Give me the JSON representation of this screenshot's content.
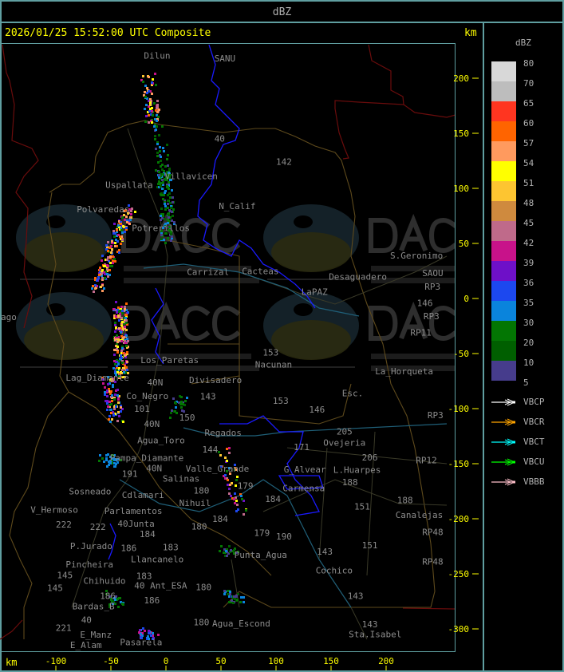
{
  "header": {
    "title": "dBZ"
  },
  "map": {
    "title": "2026/01/25 15:52:00 UTC Composite",
    "unit_top": "km",
    "unit_bottom": "km",
    "x_ticks": [
      -100,
      -50,
      0,
      50,
      100,
      150,
      200
    ],
    "y_ticks": [
      200,
      150,
      100,
      50,
      0,
      -50,
      -100,
      -150,
      -200,
      -250,
      -300
    ],
    "x_range_km": [
      -150,
      263
    ],
    "y_range_km": [
      -320,
      232
    ],
    "axis_color": "#ffff00",
    "label_color": "#8c8c8c",
    "watermark": {
      "logo": "DACC",
      "line1": "Dirección de Agricultura",
      "line2": "y Contingencias Climáticas",
      "url": "http://www.contingencias.mendoza.gov.ar"
    },
    "places": [
      {
        "t": "Dilun",
        "x": -20,
        "y": 227
      },
      {
        "t": "SANU",
        "x": 44,
        "y": 216
      },
      {
        "t": "40",
        "x": 44,
        "y": 143
      },
      {
        "t": "142",
        "x": 100,
        "y": 122
      },
      {
        "t": "Villavicen",
        "x": -1,
        "y": 109
      },
      {
        "t": "Uspallata",
        "x": -55,
        "y": 101
      },
      {
        "t": "Polvaredas",
        "x": -81,
        "y": 79
      },
      {
        "t": "N_Calif",
        "x": 48,
        "y": 82
      },
      {
        "t": "Potrerillos",
        "x": -31,
        "y": 62
      },
      {
        "t": "Carrizal",
        "x": 19,
        "y": 22
      },
      {
        "t": "Cacteas",
        "x": 69,
        "y": 23
      },
      {
        "t": "LaPAZ",
        "x": 123,
        "y": 4
      },
      {
        "t": "Desaguadero",
        "x": 148,
        "y": 9
      },
      {
        "t": "S.Geronimo",
        "x": 211,
        "y": 37
      },
      {
        "t": "SAOU",
        "x": 238,
        "y": 21
      },
      {
        "t": "146",
        "x": 228,
        "y": -6
      },
      {
        "t": "RP3",
        "x": 235,
        "y": 0
      },
      {
        "t": "RP3",
        "x": 234,
        "y": -18
      },
      {
        "t": "RP11",
        "x": 222,
        "y": -33
      },
      {
        "t": "153",
        "x": 88,
        "y": -51
      },
      {
        "t": "Nacunan",
        "x": 81,
        "y": -62
      },
      {
        "t": "La_Horqueta",
        "x": 190,
        "y": -68
      },
      {
        "t": "Esc.",
        "x": 160,
        "y": -88
      },
      {
        "t": "153",
        "x": 97,
        "y": -95
      },
      {
        "t": "146",
        "x": 130,
        "y": -103
      },
      {
        "t": "RP3",
        "x": 242,
        "y": -108
      },
      {
        "t": "Lag_Diamante",
        "x": -91,
        "y": -74
      },
      {
        "t": "Co_Negro",
        "x": -36,
        "y": -82
      },
      {
        "t": "40N",
        "x": -17,
        "y": -87
      },
      {
        "t": "Divisadero",
        "x": 21,
        "y": -76
      },
      {
        "t": "Los_Paretas",
        "x": -23,
        "y": -58
      },
      {
        "t": "143",
        "x": 31,
        "y": -91
      },
      {
        "t": "101",
        "x": -29,
        "y": -102
      },
      {
        "t": "150",
        "x": 12,
        "y": -110
      },
      {
        "t": "40N",
        "x": -20,
        "y": -116
      },
      {
        "t": "Agua_Toro",
        "x": -26,
        "y": -122
      },
      {
        "t": "Regados",
        "x": 17,
        "y": -124
      },
      {
        "t": "Pampa_Diamante",
        "x": -51,
        "y": -138
      },
      {
        "t": "191",
        "x": -40,
        "y": -144
      },
      {
        "t": "144",
        "x": 33,
        "y": -139
      },
      {
        "t": "Valle_Grande",
        "x": 18,
        "y": -148
      },
      {
        "t": "40N",
        "x": -36,
        "y": -156
      },
      {
        "t": "Salinas",
        "x": -3,
        "y": -157
      },
      {
        "t": "180",
        "x": 25,
        "y": -159
      },
      {
        "t": "Cdlamari",
        "x": -40,
        "y": -163
      },
      {
        "t": "Parlamentos",
        "x": -56,
        "y": -169
      },
      {
        "t": "Sosneado",
        "x": -70,
        "y": -177
      },
      {
        "t": "Nihuil",
        "x": 12,
        "y": -179
      },
      {
        "t": "V_Hermoso",
        "x": -123,
        "y": -185
      },
      {
        "t": "222",
        "x": -100,
        "y": -190
      },
      {
        "t": "222",
        "x": -69,
        "y": -192
      },
      {
        "t": "40Junta",
        "x": -62,
        "y": -198
      },
      {
        "t": "P.Jurado",
        "x": -87,
        "y": -218
      },
      {
        "t": "Pincheira",
        "x": -91,
        "y": -226
      },
      {
        "t": "184",
        "x": -24,
        "y": -216
      },
      {
        "t": "180",
        "x": 23,
        "y": -209
      },
      {
        "t": "184",
        "x": 42,
        "y": -202
      },
      {
        "t": "183",
        "x": -3,
        "y": -228
      },
      {
        "t": "Llancanelo",
        "x": -50,
        "y": -230
      },
      {
        "t": "Chihuido",
        "x": -75,
        "y": -241
      },
      {
        "t": "186",
        "x": -60,
        "y": -246
      },
      {
        "t": "186",
        "x": -41,
        "y": -246
      },
      {
        "t": "183",
        "x": -27,
        "y": -254
      },
      {
        "t": "40 Ant_ESA",
        "x": -65,
        "y": -254
      },
      {
        "t": "145",
        "x": -108,
        "y": -265
      },
      {
        "t": "145",
        "x": -99,
        "y": -262
      },
      {
        "t": "Bardas_B",
        "x": -85,
        "y": -264
      },
      {
        "t": "180",
        "x": 27,
        "y": -264
      },
      {
        "t": "186",
        "x": -20,
        "y": -276
      },
      {
        "t": "40",
        "x": -77,
        "y": -285
      },
      {
        "t": "E_Manz",
        "x": -78,
        "y": -290
      },
      {
        "t": "221",
        "x": -82,
        "y": -301
      },
      {
        "t": "E_Alam",
        "x": -87,
        "y": -308
      },
      {
        "t": "Pasarela",
        "x": -78,
        "y": -314
      },
      {
        "t": "180",
        "x": 25,
        "y": -296
      },
      {
        "t": "Agua_Escond",
        "x": 42,
        "y": -297
      },
      {
        "t": "143",
        "x": 178,
        "y": -298
      },
      {
        "t": "Sta.Isabel",
        "x": 166,
        "y": -307
      },
      {
        "t": "143",
        "x": 165,
        "y": -272
      },
      {
        "t": "143",
        "x": 137,
        "y": -232
      },
      {
        "t": "Cochico",
        "x": 136,
        "y": -249
      },
      {
        "t": "151",
        "x": 178,
        "y": -226
      },
      {
        "t": "151",
        "x": 171,
        "y": -191
      },
      {
        "t": "190",
        "x": 100,
        "y": -218
      },
      {
        "t": "179",
        "x": 80,
        "y": -215
      },
      {
        "t": "179",
        "x": 65,
        "y": -172
      },
      {
        "t": "Punta_Agua",
        "x": 62,
        "y": -226
      },
      {
        "t": "184",
        "x": 90,
        "y": -184
      },
      {
        "t": "Carmensa",
        "x": 106,
        "y": -183
      },
      {
        "t": "G_Alvear",
        "x": 107,
        "y": -166
      },
      {
        "t": "188",
        "x": 160,
        "y": -169
      },
      {
        "t": "L.Huarpes",
        "x": 152,
        "y": -175
      },
      {
        "t": "Ovejeria",
        "x": 143,
        "y": -133
      },
      {
        "t": "205",
        "x": 155,
        "y": -149
      },
      {
        "t": "206",
        "x": 178,
        "y": -155
      },
      {
        "t": "171",
        "x": 116,
        "y": -137
      },
      {
        "t": "RP12",
        "x": 227,
        "y": -149
      },
      {
        "t": "188",
        "x": 210,
        "y": -185
      },
      {
        "t": "Canalejas",
        "x": 209,
        "y": -190
      },
      {
        "t": "RP48",
        "x": 237,
        "y": -214
      },
      {
        "t": "RP48",
        "x": 233,
        "y": -241
      },
      {
        "t": "ago",
        "x": -150,
        "y": -19
      }
    ]
  },
  "legend": {
    "title": "dBZ",
    "scale": [
      {
        "label": "80",
        "color": "#d8d8d8"
      },
      {
        "label": "70",
        "color": "#bdbdbd"
      },
      {
        "label": "65",
        "color": "#ff3520"
      },
      {
        "label": "60",
        "color": "#ff6400"
      },
      {
        "label": "57",
        "color": "#ff9a5e"
      },
      {
        "label": "54",
        "color": "#ffff00"
      },
      {
        "label": "51",
        "color": "#fdc531"
      },
      {
        "label": "48",
        "color": "#cf8a3e"
      },
      {
        "label": "45",
        "color": "#bf6a8a"
      },
      {
        "label": "42",
        "color": "#c8128a"
      },
      {
        "label": "39",
        "color": "#6e10c8"
      },
      {
        "label": "36",
        "color": "#1c48ef"
      },
      {
        "label": "35",
        "color": "#0a84dc"
      },
      {
        "label": "30",
        "color": "#037603"
      },
      {
        "label": "20",
        "color": "#005f00"
      },
      {
        "label": "10",
        "color": "#463c8c"
      },
      {
        "label": "5",
        "color": ""
      }
    ],
    "radars": [
      {
        "name": "VBCP",
        "color": "#ffffff"
      },
      {
        "name": "VBCR",
        "color": "#ffa500"
      },
      {
        "name": "VBCT",
        "color": "#00ffff"
      },
      {
        "name": "VBCU",
        "color": "#00ff00"
      },
      {
        "name": "VBBB",
        "color": "#ffc0cb"
      }
    ]
  }
}
